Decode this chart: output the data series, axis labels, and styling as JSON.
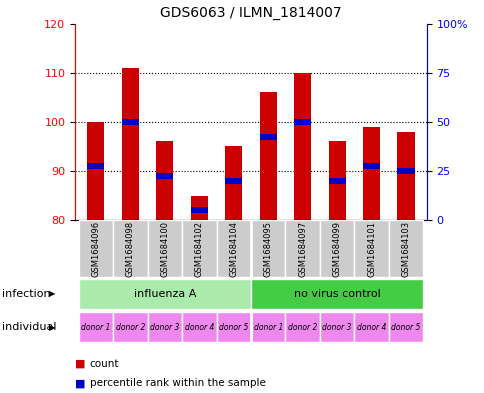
{
  "title": "GDS6063 / ILMN_1814007",
  "samples": [
    "GSM1684096",
    "GSM1684098",
    "GSM1684100",
    "GSM1684102",
    "GSM1684104",
    "GSM1684095",
    "GSM1684097",
    "GSM1684099",
    "GSM1684101",
    "GSM1684103"
  ],
  "bar_values": [
    100,
    111,
    96,
    85,
    95,
    106,
    110,
    96,
    99,
    98
  ],
  "bar_bottom": 80,
  "blue_values": [
    91,
    100,
    89,
    82,
    88,
    97,
    100,
    88,
    91,
    90
  ],
  "ylim_left": [
    80,
    120
  ],
  "ylim_right": [
    0,
    100
  ],
  "yticks_left": [
    80,
    90,
    100,
    110,
    120
  ],
  "yticks_right": [
    0,
    25,
    50,
    75,
    100
  ],
  "yticklabels_right": [
    "0",
    "25",
    "50",
    "75",
    "100%"
  ],
  "bar_color": "#cc0000",
  "blue_color": "#0000cc",
  "infection_groups": [
    {
      "label": "influenza A",
      "start": 0,
      "end": 5,
      "color": "#aaeaaa"
    },
    {
      "label": "no virus control",
      "start": 5,
      "end": 10,
      "color": "#44cc44"
    }
  ],
  "individual_labels": [
    "donor 1",
    "donor 2",
    "donor 3",
    "donor 4",
    "donor 5",
    "donor 1",
    "donor 2",
    "donor 3",
    "donor 4",
    "donor 5"
  ],
  "individual_color": "#ee88ee",
  "sample_bg_color": "#cccccc",
  "infection_row_label": "infection",
  "individual_row_label": "individual",
  "legend_count_label": "count",
  "legend_pct_label": "percentile rank within the sample",
  "bar_width": 0.5,
  "title_fontsize": 10,
  "tick_fontsize": 8,
  "label_fontsize": 8
}
